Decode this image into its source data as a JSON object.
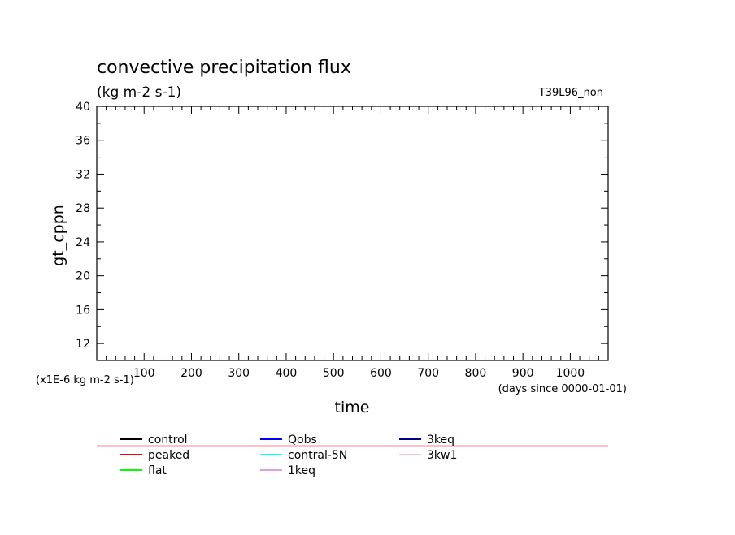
{
  "chart_data": {
    "type": "line",
    "title": "convective precipitation flux",
    "subtitle": "(kg m-2 s-1)",
    "run_label": "T39L96_non",
    "xlabel": "time",
    "x_units": "(days since 0000-01-01)",
    "ylabel": "gt_cppn",
    "y_units": "(x1E-6 kg m-2 s-1)",
    "xlim": [
      0,
      1080
    ],
    "ylim": [
      10,
      40
    ],
    "x_ticks": [
      100,
      200,
      300,
      400,
      500,
      600,
      700,
      800,
      900,
      1000
    ],
    "y_ticks": [
      12,
      16,
      20,
      24,
      28,
      32,
      36,
      40
    ],
    "grid": false,
    "legend_position": "below",
    "series": [
      {
        "name": "control",
        "color": "#000000",
        "values": []
      },
      {
        "name": "peaked",
        "color": "#ff0000",
        "values": []
      },
      {
        "name": "flat",
        "color": "#00ff00",
        "values": []
      },
      {
        "name": "Qobs",
        "color": "#0000ff",
        "values": []
      },
      {
        "name": "contral-5N",
        "color": "#00ffff",
        "values": []
      },
      {
        "name": "1keq",
        "color": "#dda0dd",
        "values": []
      },
      {
        "name": "3keq",
        "color": "#000080",
        "values": []
      },
      {
        "name": "3kw1",
        "color": "#ffc0cb",
        "values": [],
        "note": "constant off-scale"
      }
    ]
  }
}
